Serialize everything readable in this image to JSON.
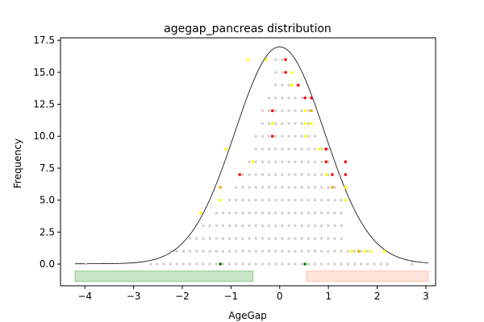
{
  "chart_data": {
    "type": "scatter",
    "title": "agegap_pancreas distribution",
    "xlabel": "AgeGap",
    "ylabel": "Frequency",
    "xlim": [
      -4.5,
      3.2
    ],
    "ylim": [
      -1.7,
      17.7
    ],
    "x_ticks": [
      -4,
      -3,
      -2,
      -1,
      0,
      1,
      2,
      3
    ],
    "y_ticks": [
      0.0,
      2.5,
      5.0,
      7.5,
      10.0,
      12.5,
      15.0,
      17.5
    ],
    "x_tick_labels": [
      "−4",
      "−3",
      "−2",
      "−1",
      "0",
      "1",
      "2",
      "3"
    ],
    "y_tick_labels": [
      "0.0",
      "2.5",
      "5.0",
      "7.5",
      "10.0",
      "12.5",
      "15.0",
      "17.5"
    ],
    "normal_curve": {
      "mean": 0.0,
      "sd": 0.92,
      "peak": 17.0,
      "baseline": 0.02,
      "x_range": [
        -4.2,
        3.05
      ],
      "color": "#000000"
    },
    "column_grid": {
      "x_start": -2.65,
      "x_step": 0.135,
      "count": 37,
      "y_step": 1.0
    },
    "column_heights": [
      0,
      0,
      0,
      1,
      1,
      1,
      2,
      2,
      3,
      3,
      4,
      4,
      5,
      6,
      7,
      8,
      10,
      12,
      13,
      16,
      16,
      14,
      13,
      13,
      12,
      10,
      9,
      9,
      6,
      5,
      1,
      1,
      1,
      1,
      0,
      0,
      0
    ],
    "dot_colors": {
      "default": "#cccccc",
      "yellow": "#ffff00",
      "red": "#ff0000",
      "orange": "#ffa500",
      "green": "#008000"
    },
    "highlights": [
      {
        "x": -0.65,
        "y": 16,
        "color": "yellow"
      },
      {
        "x": -0.28,
        "y": 16,
        "color": "yellow"
      },
      {
        "x": 0.12,
        "y": 16,
        "color": "red"
      },
      {
        "x": 0.12,
        "y": 15,
        "color": "red"
      },
      {
        "x": 0.25,
        "y": 15,
        "color": "yellow"
      },
      {
        "x": 0.38,
        "y": 14,
        "color": "red"
      },
      {
        "x": 0.25,
        "y": 14,
        "color": "yellow"
      },
      {
        "x": 0.52,
        "y": 13,
        "color": "red"
      },
      {
        "x": 0.65,
        "y": 13,
        "color": "red"
      },
      {
        "x": 0.52,
        "y": 12,
        "color": "yellow"
      },
      {
        "x": 0.65,
        "y": 12,
        "color": "orange"
      },
      {
        "x": -0.15,
        "y": 12,
        "color": "red"
      },
      {
        "x": -0.15,
        "y": 11,
        "color": "yellow"
      },
      {
        "x": -0.15,
        "y": 10,
        "color": "red"
      },
      {
        "x": 0.52,
        "y": 11,
        "color": "yellow"
      },
      {
        "x": 0.65,
        "y": 11,
        "color": "yellow"
      },
      {
        "x": 0.52,
        "y": 10,
        "color": "yellow"
      },
      {
        "x": -1.1,
        "y": 9,
        "color": "yellow"
      },
      {
        "x": 0.82,
        "y": 9,
        "color": "yellow"
      },
      {
        "x": 0.95,
        "y": 9,
        "color": "red"
      },
      {
        "x": -0.55,
        "y": 8,
        "color": "yellow"
      },
      {
        "x": 0.95,
        "y": 8,
        "color": "red"
      },
      {
        "x": 1.35,
        "y": 8,
        "color": "red"
      },
      {
        "x": -0.82,
        "y": 7,
        "color": "red"
      },
      {
        "x": 0.95,
        "y": 7,
        "color": "yellow"
      },
      {
        "x": 1.08,
        "y": 7,
        "color": "red"
      },
      {
        "x": 1.35,
        "y": 7,
        "color": "red"
      },
      {
        "x": -1.22,
        "y": 6,
        "color": "orange"
      },
      {
        "x": 1.08,
        "y": 6,
        "color": "orange"
      },
      {
        "x": 1.35,
        "y": 6,
        "color": "yellow"
      },
      {
        "x": -1.22,
        "y": 5,
        "color": "yellow"
      },
      {
        "x": 1.35,
        "y": 5,
        "color": "yellow"
      },
      {
        "x": -1.62,
        "y": 4,
        "color": "yellow"
      },
      {
        "x": 1.48,
        "y": 1,
        "color": "yellow"
      },
      {
        "x": 1.62,
        "y": 1,
        "color": "orange"
      },
      {
        "x": 1.75,
        "y": 1,
        "color": "yellow"
      },
      {
        "x": 1.88,
        "y": 1,
        "color": "yellow"
      },
      {
        "x": 2.15,
        "y": 1,
        "color": "yellow"
      },
      {
        "x": -1.22,
        "y": 0,
        "color": "green"
      },
      {
        "x": 0.52,
        "y": 0,
        "color": "green"
      }
    ],
    "extra_points": [
      {
        "x": -3.98,
        "y": 0,
        "color": "default"
      },
      {
        "x": 2.72,
        "y": 0,
        "color": "default"
      }
    ],
    "ranges": [
      {
        "name": "green-range",
        "x0": -4.2,
        "x1": -0.55,
        "y0": -1.35,
        "y1": -0.55,
        "fill": "#2ca02c",
        "fill_opacity": 0.25,
        "stroke": "#2ca02c",
        "stroke_opacity": 0.5
      },
      {
        "name": "red-range",
        "x0": 0.55,
        "x1": 3.05,
        "y0": -1.35,
        "y1": -0.55,
        "fill": "#ff7f50",
        "fill_opacity": 0.2,
        "stroke": "#ff7f50",
        "stroke_opacity": 0.4
      }
    ]
  }
}
